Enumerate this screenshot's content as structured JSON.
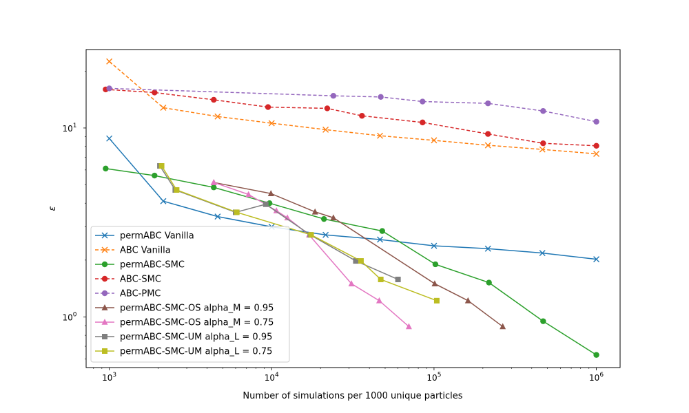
{
  "chart_data": {
    "type": "line",
    "title": "",
    "xlabel": "Number of simulations per 1000 unique particles",
    "ylabel": "ε",
    "xscale": "log",
    "yscale": "log",
    "xlim": [
      720,
      1400000
    ],
    "ylim": [
      0.54,
      26
    ],
    "x_ticks": [
      {
        "value": 1000,
        "base": "10",
        "exp": "3"
      },
      {
        "value": 10000,
        "base": "10",
        "exp": "4"
      },
      {
        "value": 100000,
        "base": "10",
        "exp": "5"
      },
      {
        "value": 1000000,
        "base": "10",
        "exp": "6"
      }
    ],
    "y_ticks": [
      {
        "value": 1,
        "base": "10",
        "exp": "0"
      },
      {
        "value": 10,
        "base": "10",
        "exp": "1"
      }
    ],
    "grid": false,
    "legend_position": "lower-left",
    "series": [
      {
        "name": "permABC Vanilla",
        "color": "#1f77b4",
        "dash": "solid",
        "marker": "x",
        "x": [
          1000,
          2150,
          4650,
          10000,
          21500,
          46500,
          100000,
          215000,
          465000,
          1000000
        ],
        "y": [
          8.8,
          4.1,
          3.4,
          3.0,
          2.72,
          2.57,
          2.38,
          2.3,
          2.18,
          2.02
        ]
      },
      {
        "name": "ABC Vanilla",
        "color": "#ff7f0e",
        "dash": "dashed",
        "marker": "x",
        "x": [
          1000,
          2150,
          4650,
          10000,
          21500,
          46500,
          100000,
          215000,
          465000,
          1000000
        ],
        "y": [
          22.5,
          12.8,
          11.5,
          10.6,
          9.8,
          9.1,
          8.6,
          8.1,
          7.7,
          7.3
        ]
      },
      {
        "name": "permABC-SMC",
        "color": "#2ca02c",
        "dash": "solid",
        "marker": "o",
        "x": [
          950,
          1900,
          4400,
          9700,
          21000,
          48000,
          102000,
          218000,
          470000,
          1000000
        ],
        "y": [
          6.1,
          5.6,
          4.85,
          4.0,
          3.3,
          2.85,
          1.9,
          1.52,
          0.95,
          0.63
        ]
      },
      {
        "name": "ABC-SMC",
        "color": "#d62728",
        "dash": "dashed",
        "marker": "o",
        "x": [
          950,
          1900,
          4400,
          9500,
          22000,
          36000,
          85000,
          215000,
          470000,
          1000000
        ],
        "y": [
          16.0,
          15.4,
          14.1,
          12.9,
          12.7,
          11.6,
          10.7,
          9.3,
          8.3,
          8.05
        ]
      },
      {
        "name": "ABC-PMC",
        "color": "#9467bd",
        "dash": "dashed",
        "marker": "o",
        "x": [
          1000,
          24000,
          47000,
          85000,
          215000,
          470000,
          1000000
        ],
        "y": [
          16.2,
          14.8,
          14.6,
          13.8,
          13.5,
          12.3,
          10.8
        ]
      },
      {
        "name": "permABC-SMC-OS alpha_M = 0.95",
        "color": "#8c564b",
        "dash": "solid",
        "marker": "^",
        "x": [
          4400,
          9900,
          18500,
          24000,
          101000,
          162000,
          265000
        ],
        "y": [
          5.15,
          4.5,
          3.6,
          3.35,
          1.5,
          1.22,
          0.89
        ]
      },
      {
        "name": "permABC-SMC-OS alpha_M = 0.75",
        "color": "#e377c2",
        "dash": "solid",
        "marker": "^",
        "x": [
          4400,
          7200,
          10700,
          12500,
          17000,
          31000,
          46000,
          70000
        ],
        "y": [
          5.15,
          4.45,
          3.65,
          3.35,
          2.72,
          1.5,
          1.22,
          0.89
        ]
      },
      {
        "name": "permABC-SMC-UM alpha_L = 0.95",
        "color": "#7f7f7f",
        "dash": "solid",
        "marker": "s",
        "x": [
          2050,
          2550,
          6000,
          9200,
          17300,
          33000,
          60000
        ],
        "y": [
          6.3,
          4.7,
          3.58,
          3.95,
          2.72,
          1.98,
          1.58
        ]
      },
      {
        "name": "permABC-SMC-UM alpha_L = 0.75",
        "color": "#bcbd22",
        "dash": "solid",
        "marker": "s",
        "x": [
          2100,
          2600,
          6100,
          17500,
          35500,
          47000,
          104000
        ],
        "y": [
          6.3,
          4.7,
          3.58,
          2.72,
          1.98,
          1.58,
          1.22
        ]
      }
    ]
  }
}
